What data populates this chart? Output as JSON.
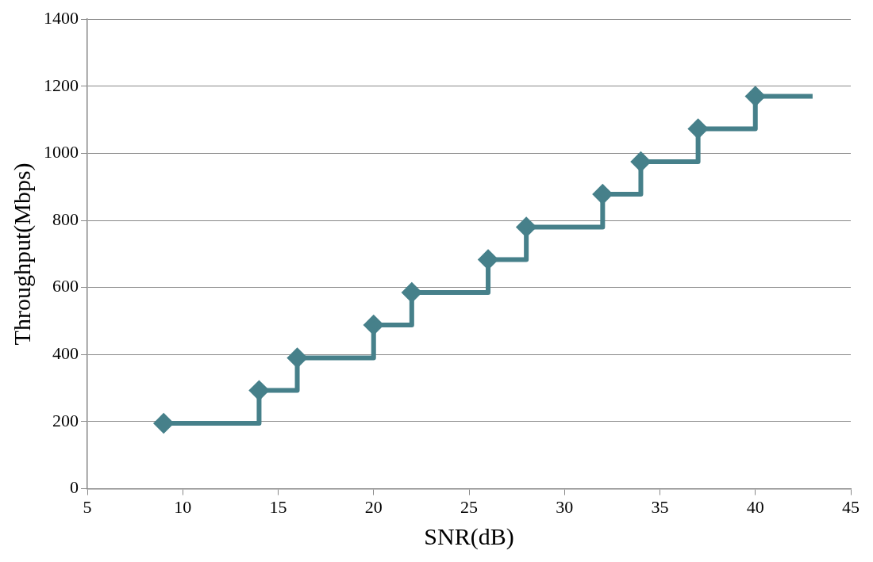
{
  "chart_data": {
    "type": "step",
    "xlabel": "SNR(dB)",
    "ylabel": "Throughput(Mbps)",
    "x": [
      9,
      14,
      16,
      20,
      22,
      26,
      28,
      32,
      34,
      37,
      40,
      43
    ],
    "series": [
      {
        "color": "#46808a",
        "values": [
          195,
          293,
          390,
          488,
          585,
          683,
          780,
          878,
          975,
          1073,
          1170,
          1170
        ]
      }
    ],
    "xlim": [
      5,
      45
    ],
    "xticks": [
      5,
      10,
      15,
      20,
      25,
      30,
      35,
      40,
      45
    ],
    "ylim": [
      0,
      1400
    ],
    "yticks": [
      0,
      200,
      400,
      600,
      800,
      1000,
      1200,
      1400
    ],
    "grid": "y",
    "legend": false,
    "marker": "diamond",
    "line_style": "solid"
  }
}
